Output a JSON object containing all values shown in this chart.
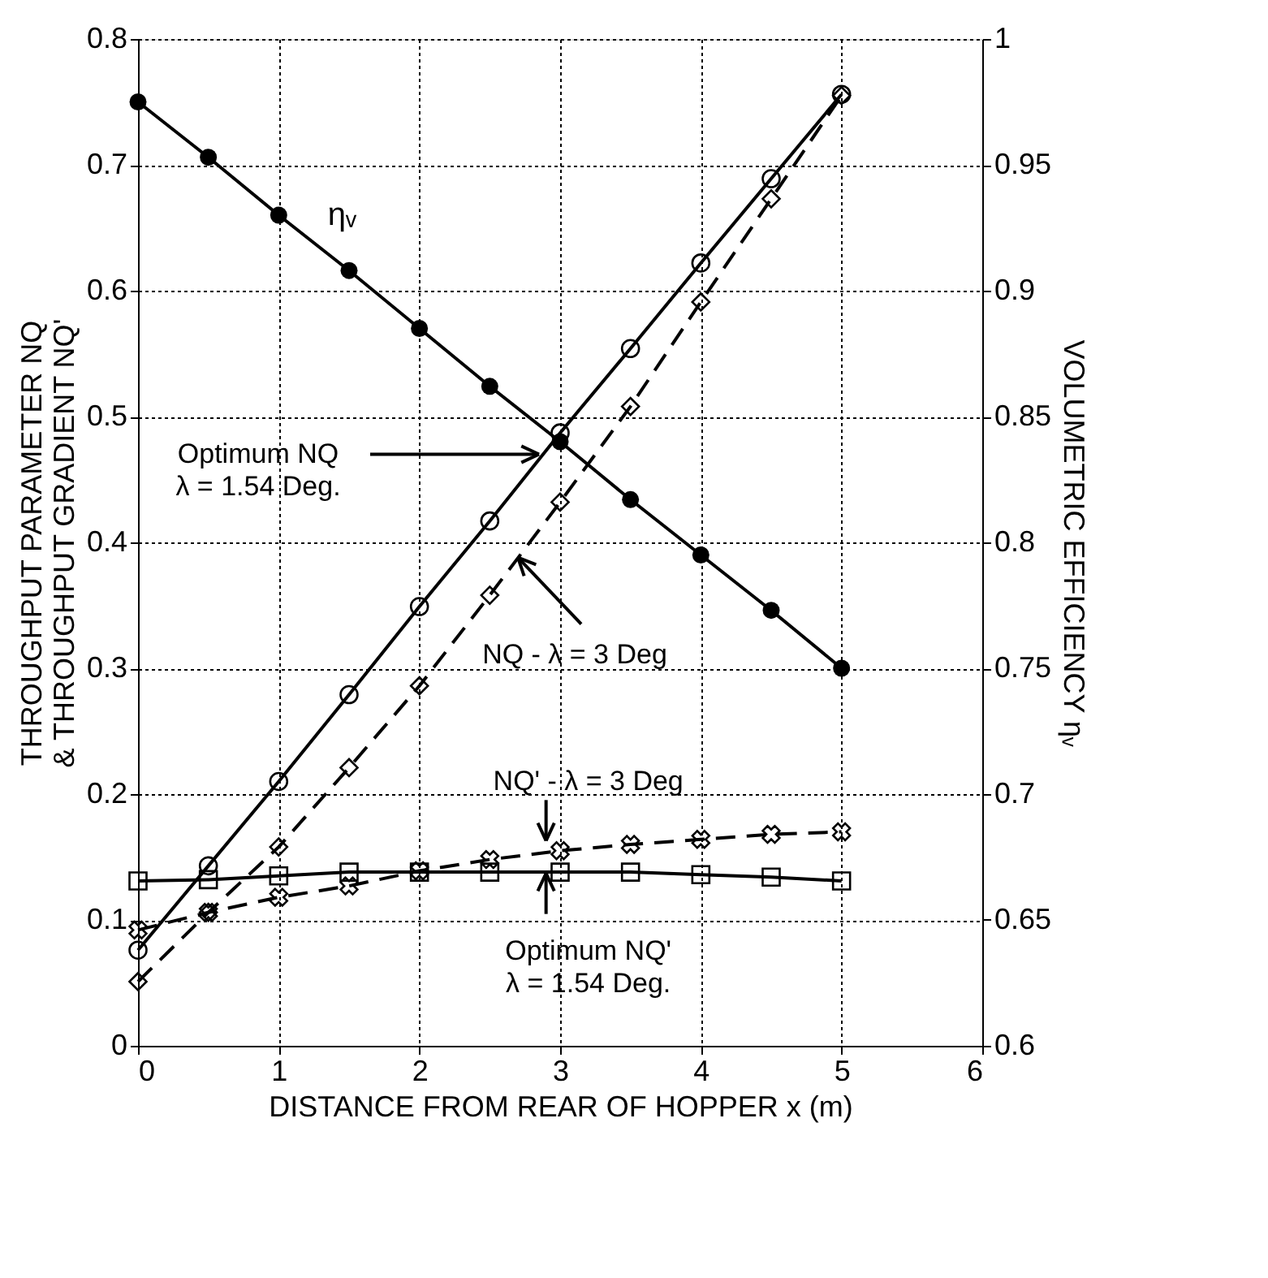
{
  "chart_data": {
    "type": "line",
    "xlabel": "DISTANCE FROM REAR OF HOPPER  x (m)",
    "ylabel": "THROUGHPUT PARAMETER  NQ\n& THROUGHPUT GRADIENT NQ'",
    "y2label": "VOLUMETRIC EFFICIENCY  ηᵥ",
    "x": [
      0,
      0.5,
      1,
      1.5,
      2,
      2.5,
      3,
      3.5,
      4,
      4.5,
      5
    ],
    "series": [
      {
        "color": "#000000",
        "axis": "y2",
        "marker": "circle",
        "line_style": "solid",
        "values": [
          0.975,
          0.953,
          0.93,
          0.908,
          0.885,
          0.862,
          0.84,
          0.817,
          0.795,
          0.773,
          0.75
        ]
      },
      {
        "color": "#000000",
        "marker": "circle",
        "line_style": "solid",
        "values": [
          0.076,
          0.143,
          0.21,
          0.279,
          0.349,
          0.417,
          0.487,
          0.554,
          0.622,
          0.689,
          0.756
        ]
      },
      {
        "color": "#000000",
        "marker": "diamond",
        "line_style": "dashed",
        "values": [
          0.051,
          0.106,
          0.158,
          0.221,
          0.286,
          0.358,
          0.432,
          0.508,
          0.591,
          0.673,
          0.755
        ]
      },
      {
        "color": "#000000",
        "marker": "cross",
        "line_style": "dashed",
        "values": [
          0.092,
          0.106,
          0.118,
          0.127,
          0.139,
          0.148,
          0.155,
          0.16,
          0.164,
          0.168,
          0.17
        ]
      },
      {
        "color": "#000000",
        "marker": "square",
        "line_style": "solid",
        "values": [
          0.131,
          0.132,
          0.135,
          0.138,
          0.138,
          0.138,
          0.138,
          0.138,
          0.136,
          0.134,
          0.131
        ]
      }
    ],
    "xlim": [
      0,
      6
    ],
    "xticks": [
      0,
      1,
      2,
      3,
      4,
      5,
      6
    ],
    "ylim": [
      0,
      0.8
    ],
    "yticks": [
      0,
      0.1,
      0.2,
      0.3,
      0.4,
      0.5,
      0.6,
      0.7,
      0.8
    ],
    "y2lim": [
      0.6,
      1
    ],
    "y2ticks": [
      0.6,
      0.65,
      0.7,
      0.75,
      0.8,
      0.85,
      0.9,
      0.95,
      1
    ],
    "annotations": [
      "ηᵥ",
      {
        "text": "Optimum NQ\nλ = 1.54 Deg.",
        "x": 2.85,
        "y": 0.47
      },
      {
        "text": "NQ - λ = 3 Deg",
        "x": 2.7,
        "y": 0.388
      },
      {
        "text": "NQ' - λ = 3 Deg",
        "x": 2.9,
        "y": 0.163
      },
      {
        "text": "Optimum NQ'\nλ = 1.54 Deg.",
        "x": 2.9,
        "y": 0.137
      }
    ],
    "grid": true
  }
}
